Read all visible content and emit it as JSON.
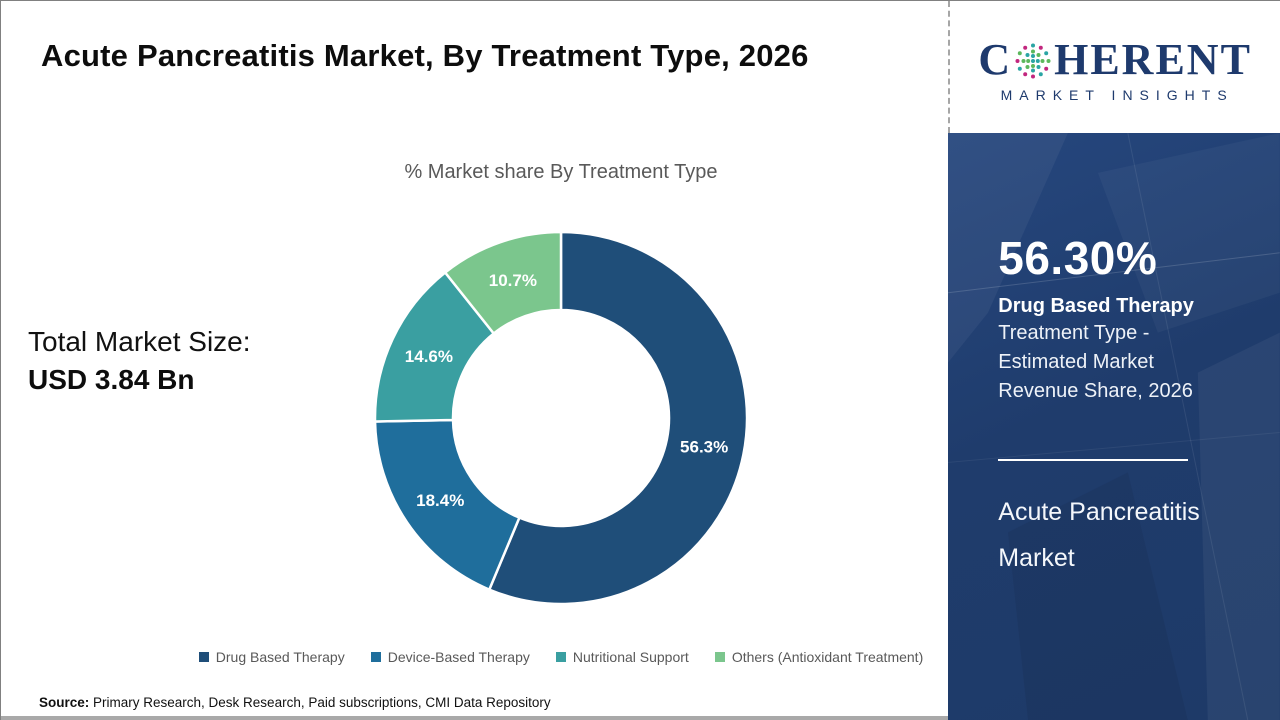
{
  "page": {
    "title": "Acute Pancreatitis Market, By Treatment Type, 2026",
    "total_market_label": "Total Market Size:",
    "total_market_value": "USD 3.84 Bn",
    "source_label": "Source:",
    "source_text": " Primary Research, Desk Research, Paid subscriptions, CMI Data Repository"
  },
  "logo": {
    "brand_prefix": "C",
    "brand_suffix": "HERENT",
    "brand_subtitle": "MARKET INSIGHTS",
    "brand_color": "#1e3a6d"
  },
  "sidebar": {
    "headline_value": "56.30%",
    "headline_label": "Drug Based Therapy",
    "headline_sublabel": "Treatment Type - Estimated Market Revenue Share, 2026",
    "footer_title": "Acute Pancreatitis Market",
    "background_color": "#1f3c6c"
  },
  "chart_data": {
    "type": "pie",
    "subtype": "donut",
    "title": "% Market share By Treatment Type",
    "categories": [
      "Drug Based Therapy",
      "Device-Based Therapy",
      "Nutritional Support",
      "Others (Antioxidant Treatment)"
    ],
    "values": [
      56.3,
      18.4,
      14.6,
      10.7
    ],
    "labels": [
      "56.3%",
      "18.4%",
      "14.6%",
      "10.7%"
    ],
    "colors": [
      "#1f4e79",
      "#1f6e9c",
      "#3a9fa1",
      "#7bc68d"
    ],
    "start_angle_deg": 0,
    "direction": "clockwise",
    "legend_position": "bottom",
    "label_text_color": "#ffffff"
  }
}
